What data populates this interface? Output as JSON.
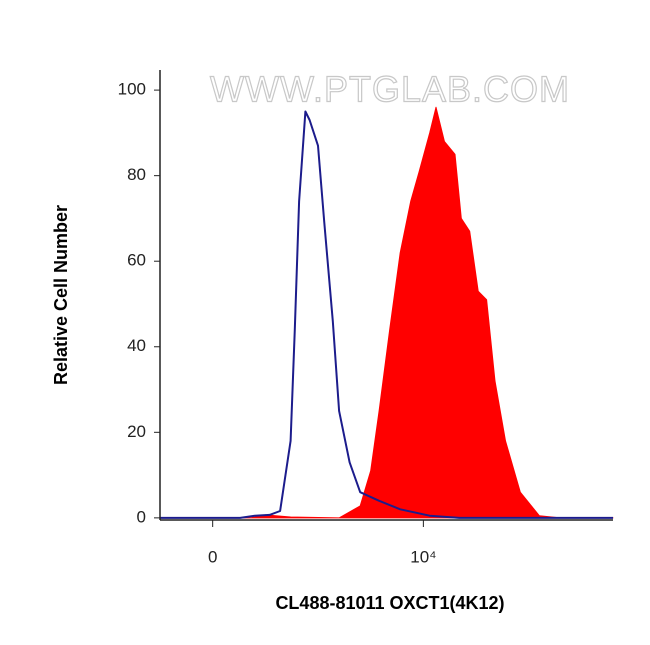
{
  "chart_data": {
    "type": "histogram-overlay",
    "watermark": "WWW.PTGLAB.COM",
    "x_label": "CL488-81011  OXCT1(4K12)",
    "y_label": "Relative Cell Number",
    "xlim": [
      -2500,
      19000
    ],
    "ylim": [
      -0.5,
      104.7
    ],
    "xticks": [
      0,
      {
        "value": 10000,
        "label": "10⁴"
      }
    ],
    "yticks": [
      0,
      20,
      40,
      60,
      80,
      100
    ],
    "series": [
      {
        "color": "#1c1c8c",
        "fill": false,
        "x": [
          -2500,
          1300,
          2000,
          2700,
          3200,
          3700,
          3900,
          4100,
          4400,
          4600,
          5000,
          5300,
          5700,
          6000,
          6500,
          7000,
          7900,
          8900,
          10300,
          11700,
          19000
        ],
        "values": [
          0,
          0,
          0.5,
          0.7,
          1.6,
          18,
          44,
          74,
          95,
          93,
          87,
          69,
          46,
          25,
          13,
          6,
          4,
          2,
          0.5,
          0,
          0
        ]
      },
      {
        "color": "#ff0000",
        "fill": true,
        "x": [
          -2500,
          1800,
          2500,
          3700,
          6000,
          7000,
          7500,
          7900,
          8400,
          8900,
          9400,
          9800,
          10300,
          10600,
          11000,
          11500,
          11800,
          12200,
          12600,
          13000,
          13400,
          13900,
          14600,
          15500,
          16500,
          19000
        ],
        "values": [
          0,
          0,
          0.7,
          0.2,
          0,
          2.8,
          11,
          25,
          44,
          62,
          74,
          81,
          90,
          96,
          88,
          85,
          70,
          67,
          53,
          51,
          32,
          18,
          6,
          0.5,
          0,
          0
        ]
      }
    ]
  }
}
